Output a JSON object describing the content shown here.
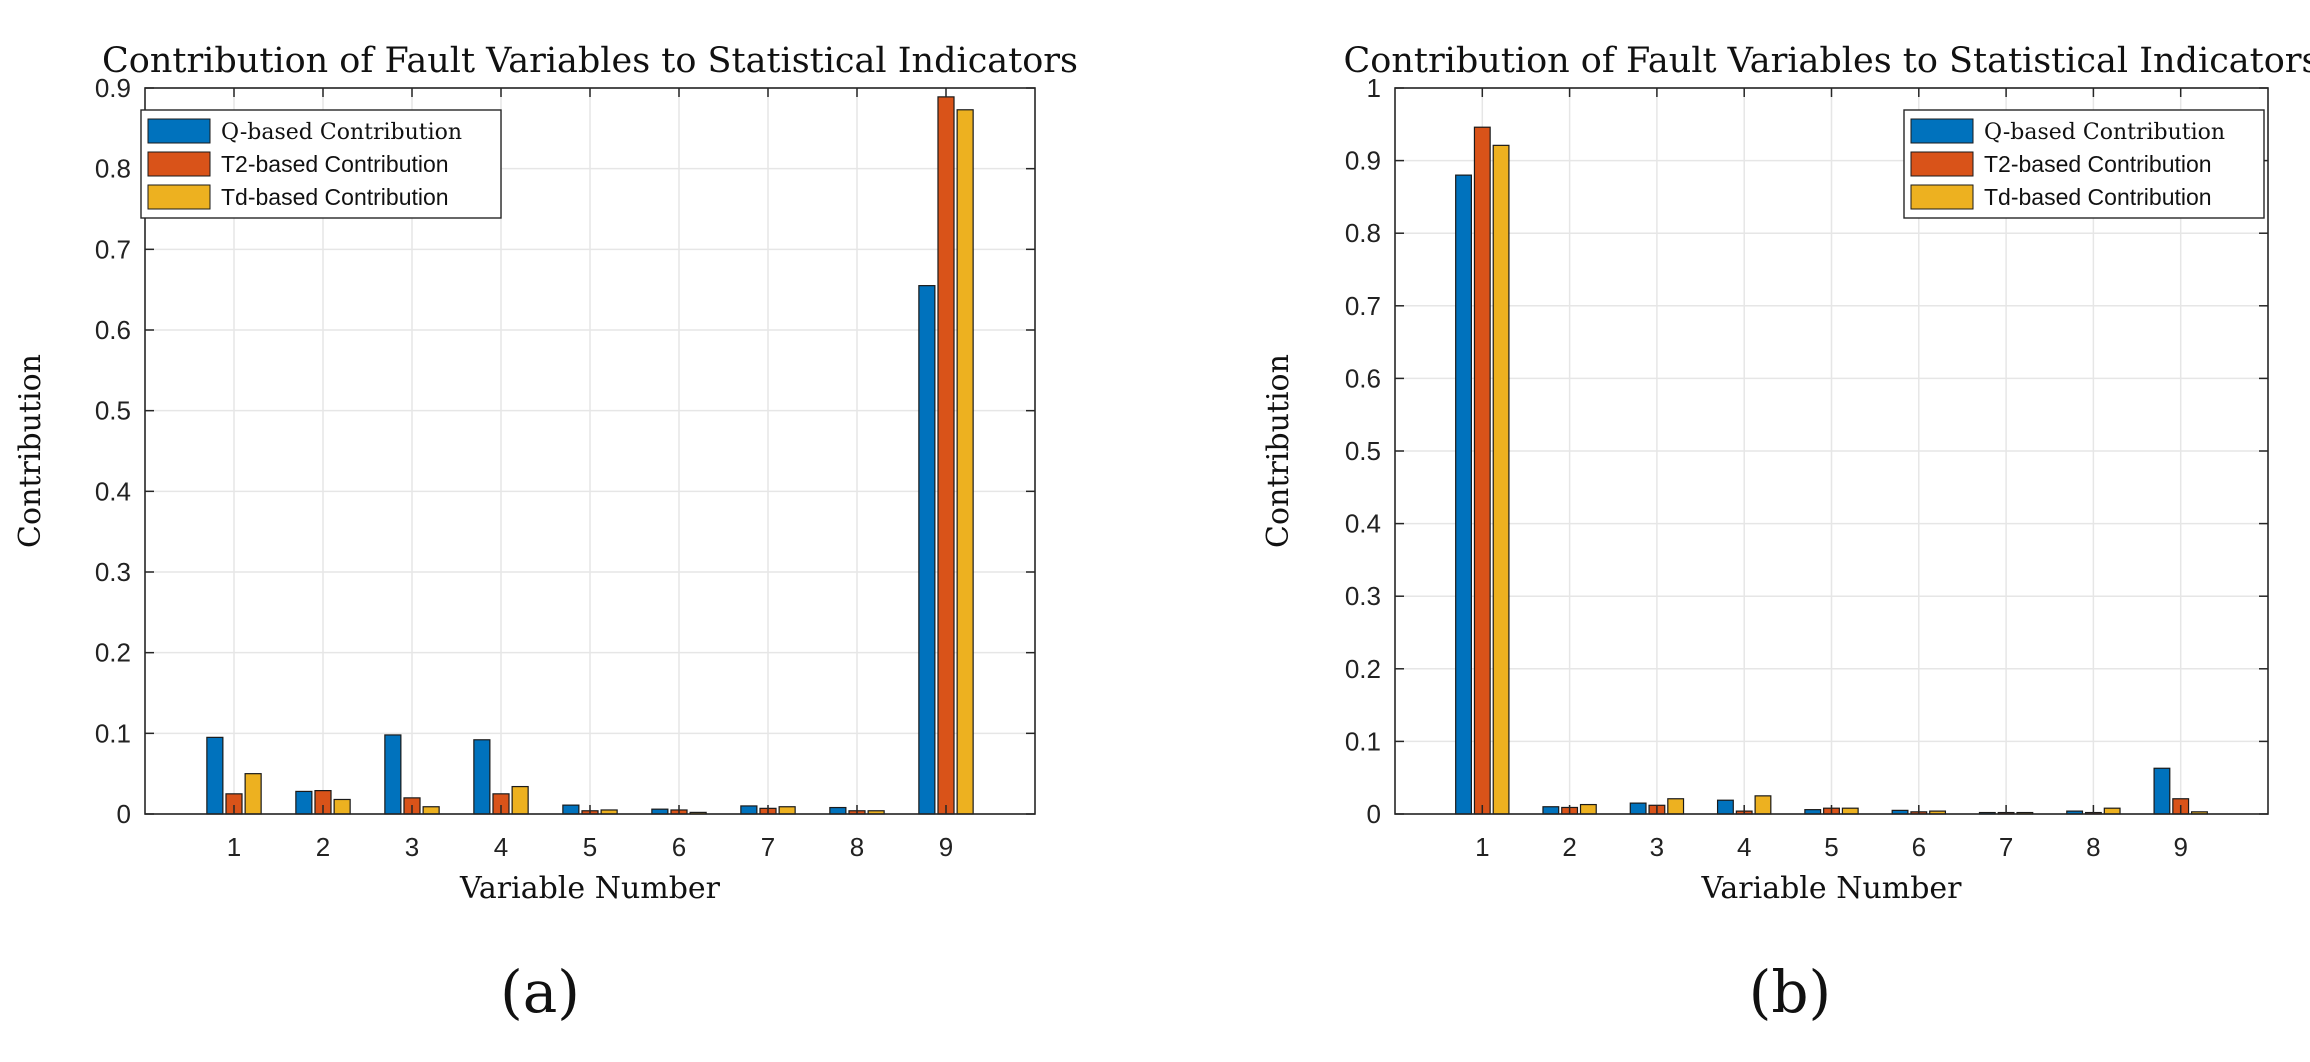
{
  "chart_data": [
    {
      "type": "bar",
      "panel_label": "(a)",
      "title": "Contribution of Fault Variables to Statistical Indicators",
      "xlabel": "Variable Number",
      "ylabel": "Contribution",
      "categories": [
        "1",
        "2",
        "3",
        "4",
        "5",
        "6",
        "7",
        "8",
        "9"
      ],
      "ylim": [
        0,
        0.9
      ],
      "yticks": [
        "0",
        "0.1",
        "0.2",
        "0.3",
        "0.4",
        "0.5",
        "0.6",
        "0.7",
        "0.8",
        "0.9"
      ],
      "grid": true,
      "legend_position": "top-left",
      "series": [
        {
          "name": "Q-based Contribution",
          "color": "#0072BD",
          "values": [
            0.095,
            0.028,
            0.098,
            0.092,
            0.011,
            0.006,
            0.01,
            0.008,
            0.655
          ]
        },
        {
          "name": "T2-based Contribution",
          "color": "#D95319",
          "values": [
            0.025,
            0.029,
            0.02,
            0.025,
            0.004,
            0.005,
            0.007,
            0.004,
            0.889
          ]
        },
        {
          "name": "Td-based Contribution",
          "color": "#EDB120",
          "values": [
            0.05,
            0.018,
            0.009,
            0.034,
            0.005,
            0.002,
            0.009,
            0.004,
            0.873
          ]
        }
      ]
    },
    {
      "type": "bar",
      "panel_label": "(b)",
      "title": "Contribution of Fault Variables to Statistical Indicators",
      "xlabel": "Variable Number",
      "ylabel": "Contribution",
      "categories": [
        "1",
        "2",
        "3",
        "4",
        "5",
        "6",
        "7",
        "8",
        "9"
      ],
      "ylim": [
        0,
        1
      ],
      "yticks": [
        "0",
        "0.1",
        "0.2",
        "0.3",
        "0.4",
        "0.5",
        "0.6",
        "0.7",
        "0.8",
        "0.9",
        "1"
      ],
      "grid": true,
      "legend_position": "top-right",
      "series": [
        {
          "name": "Q-based Contribution",
          "color": "#0072BD",
          "values": [
            0.88,
            0.01,
            0.015,
            0.019,
            0.006,
            0.005,
            0.002,
            0.004,
            0.063
          ]
        },
        {
          "name": "T2-based Contribution",
          "color": "#D95319",
          "values": [
            0.946,
            0.009,
            0.012,
            0.004,
            0.008,
            0.003,
            0.002,
            0.002,
            0.021
          ]
        },
        {
          "name": "Td-based Contribution",
          "color": "#EDB120",
          "values": [
            0.921,
            0.013,
            0.021,
            0.025,
            0.008,
            0.004,
            0.002,
            0.008,
            0.003
          ]
        }
      ]
    }
  ]
}
